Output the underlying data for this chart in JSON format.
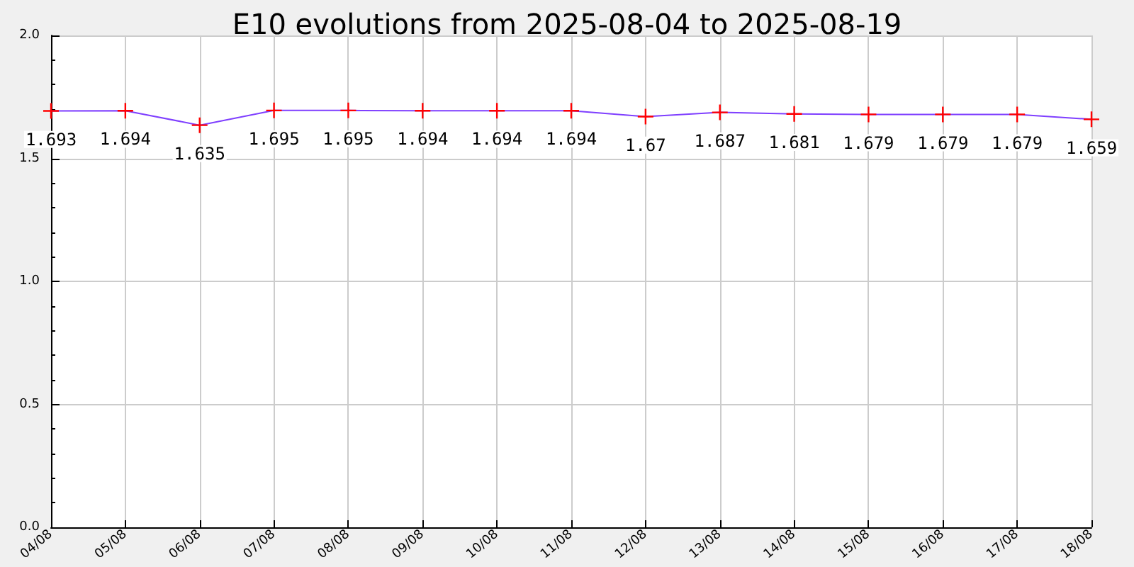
{
  "chart_data": {
    "type": "line",
    "title": "E10 evolutions from 2025-08-04 to 2025-08-19",
    "categories": [
      "04/08",
      "05/08",
      "06/08",
      "07/08",
      "08/08",
      "09/08",
      "10/08",
      "11/08",
      "12/08",
      "13/08",
      "14/08",
      "15/08",
      "16/08",
      "17/08",
      "18/08"
    ],
    "series": [
      {
        "color": "#7f3fff",
        "colors": [
          "#ff0000",
          "#ff0000",
          "#ff0000",
          "#ff0000",
          "#ff0000",
          "#ff0000",
          "#ff0000",
          "#ff0000",
          "#ff0000",
          "#ff0000",
          "#ff0000",
          "#ff0000",
          "#ff0000",
          "#ff0000",
          "#ff0000"
        ],
        "values": [
          1.693,
          1.694,
          1.635,
          1.695,
          1.695,
          1.694,
          1.694,
          1.694,
          1.67,
          1.687,
          1.681,
          1.679,
          1.679,
          1.679,
          1.659
        ]
      }
    ],
    "ylim": [
      0,
      2
    ],
    "yticks": [
      {
        "value": 0,
        "label": "0.0"
      },
      {
        "value": 0.5,
        "label": "0.5"
      },
      {
        "value": 1,
        "label": "1.0"
      },
      {
        "value": 1.5,
        "label": "1.5"
      },
      {
        "value": 2,
        "label": "2.0"
      }
    ],
    "grid": true,
    "marker": "cross",
    "data_labels": true
  }
}
